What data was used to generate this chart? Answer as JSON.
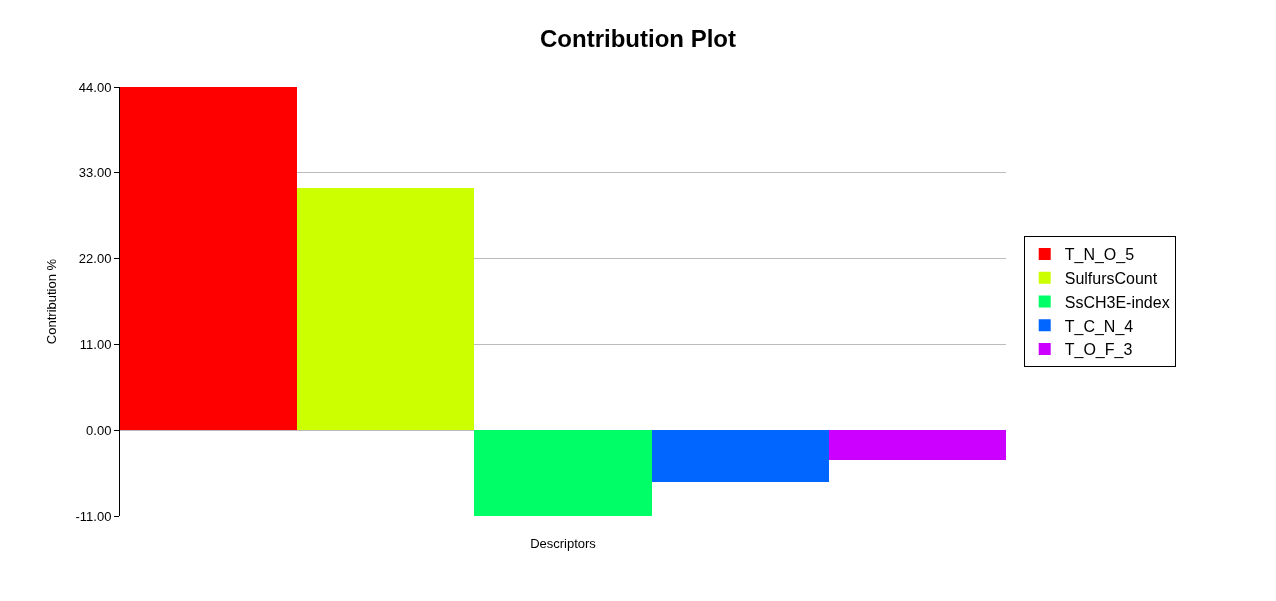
{
  "chart_data": {
    "type": "bar",
    "title": "Contribution Plot",
    "xlabel": "Descriptors",
    "ylabel": "Contribution %",
    "categories": [
      null
    ],
    "series": [
      {
        "name": "T_N_O_5",
        "color": "#ff0000",
        "values": [
          44
        ]
      },
      {
        "name": "SulfursCount",
        "color": "#ccff00",
        "values": [
          31
        ]
      },
      {
        "name": "SsCH3E-index",
        "color": "#00ff66",
        "values": [
          -11
        ]
      },
      {
        "name": "T_C_N_4",
        "color": "#0066ff",
        "values": [
          -6.6
        ]
      },
      {
        "name": "T_O_F_3",
        "color": "#cc00ff",
        "values": [
          -3.8
        ]
      }
    ],
    "ylim": [
      -11,
      44
    ],
    "yticks": [
      {
        "value": -11,
        "label": "-11.00"
      },
      {
        "value": 0,
        "label": "0.00"
      },
      {
        "value": 11,
        "label": "11.00"
      },
      {
        "value": 22,
        "label": "22.00"
      },
      {
        "value": 33,
        "label": "33.00"
      },
      {
        "value": 44,
        "label": "44.00"
      }
    ],
    "grid": "y",
    "legend": "right"
  }
}
